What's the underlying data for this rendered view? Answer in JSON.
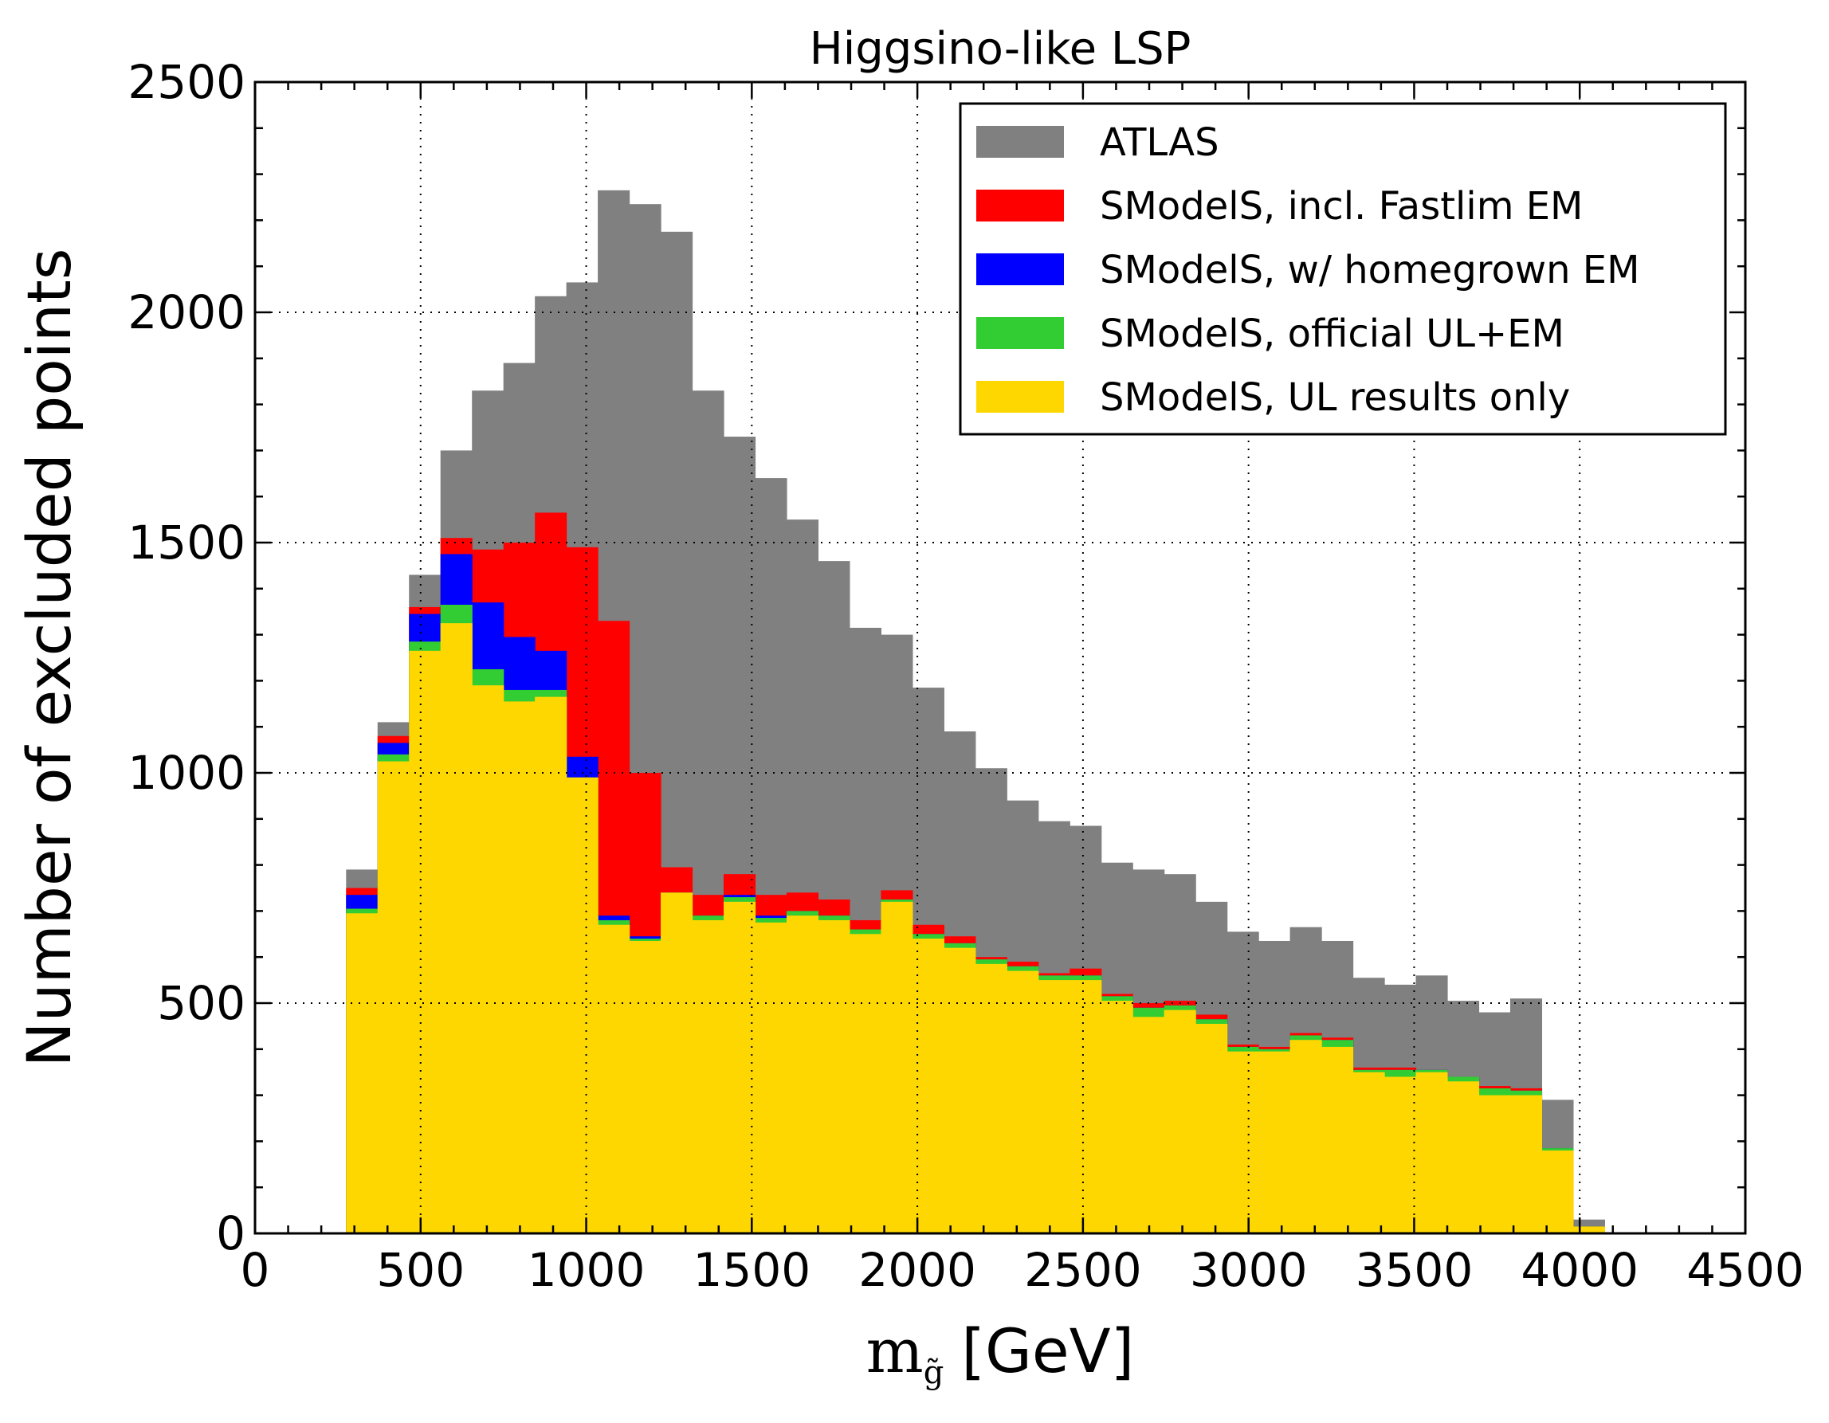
{
  "chart_data": {
    "type": "bar",
    "subtype": "stacked-overlay-histogram",
    "title": "Higgsino-like LSP",
    "xlabel_main": "m",
    "xlabel_subscript": "g̃",
    "xlabel_unit": "[GeV]",
    "ylabel": "Number of excluded points",
    "xlim": [
      0,
      4500
    ],
    "ylim": [
      0,
      2500
    ],
    "x_ticks": [
      0,
      500,
      1000,
      1500,
      2000,
      2500,
      3000,
      3500,
      4000,
      4500
    ],
    "y_ticks": [
      0,
      500,
      1000,
      1500,
      2000,
      2500
    ],
    "grid": true,
    "legend_position": "top-right",
    "bin_width": 95,
    "bin_starts": [
      275,
      370,
      465,
      560,
      655,
      750,
      845,
      940,
      1035,
      1130,
      1225,
      1320,
      1415,
      1510,
      1605,
      1700,
      1795,
      1890,
      1985,
      2080,
      2175,
      2270,
      2365,
      2460,
      2555,
      2650,
      2745,
      2840,
      2935,
      3030,
      3125,
      3220,
      3315,
      3410,
      3505,
      3600,
      3695,
      3790,
      3885,
      3980
    ],
    "series": [
      {
        "name": "ATLAS",
        "color": "#808080",
        "values": [
          790,
          1110,
          1430,
          1700,
          1830,
          1890,
          2035,
          2065,
          2265,
          2235,
          2175,
          1830,
          1730,
          1640,
          1550,
          1460,
          1315,
          1300,
          1185,
          1090,
          1010,
          940,
          895,
          885,
          805,
          790,
          780,
          720,
          655,
          635,
          665,
          635,
          555,
          540,
          560,
          505,
          480,
          510,
          290,
          30
        ]
      },
      {
        "name": "SModelS, incl. Fastlim EM",
        "color": "#ff0000",
        "values": [
          750,
          1080,
          1360,
          1510,
          1485,
          1500,
          1565,
          1490,
          1330,
          1000,
          795,
          735,
          780,
          735,
          740,
          725,
          680,
          745,
          670,
          645,
          600,
          590,
          565,
          575,
          520,
          500,
          505,
          475,
          410,
          405,
          435,
          425,
          360,
          360,
          355,
          340,
          320,
          315,
          185,
          15
        ]
      },
      {
        "name": "SModelS, w/ homegrown EM",
        "color": "#0000ff",
        "values": [
          735,
          1065,
          1345,
          1475,
          1370,
          1295,
          1265,
          1035,
          690,
          645,
          740,
          690,
          735,
          690,
          700,
          690,
          660,
          725,
          650,
          630,
          595,
          580,
          560,
          560,
          515,
          490,
          495,
          465,
          405,
          400,
          430,
          420,
          355,
          355,
          355,
          340,
          315,
          310,
          185,
          15
        ]
      },
      {
        "name": "SModelS, official UL+EM",
        "color": "#32cd32",
        "values": [
          705,
          1040,
          1285,
          1365,
          1225,
          1180,
          1180,
          990,
          680,
          640,
          740,
          690,
          730,
          685,
          700,
          690,
          660,
          725,
          650,
          630,
          595,
          580,
          560,
          560,
          515,
          490,
          495,
          465,
          405,
          400,
          430,
          420,
          355,
          355,
          355,
          340,
          315,
          310,
          185,
          15
        ]
      },
      {
        "name": "SModelS, UL results only",
        "color": "#ffd700",
        "values": [
          695,
          1025,
          1265,
          1325,
          1190,
          1155,
          1165,
          990,
          670,
          635,
          740,
          680,
          720,
          675,
          690,
          680,
          650,
          720,
          640,
          620,
          585,
          570,
          550,
          550,
          505,
          470,
          485,
          455,
          395,
          395,
          420,
          405,
          350,
          340,
          350,
          330,
          300,
          300,
          180,
          15
        ]
      }
    ]
  }
}
